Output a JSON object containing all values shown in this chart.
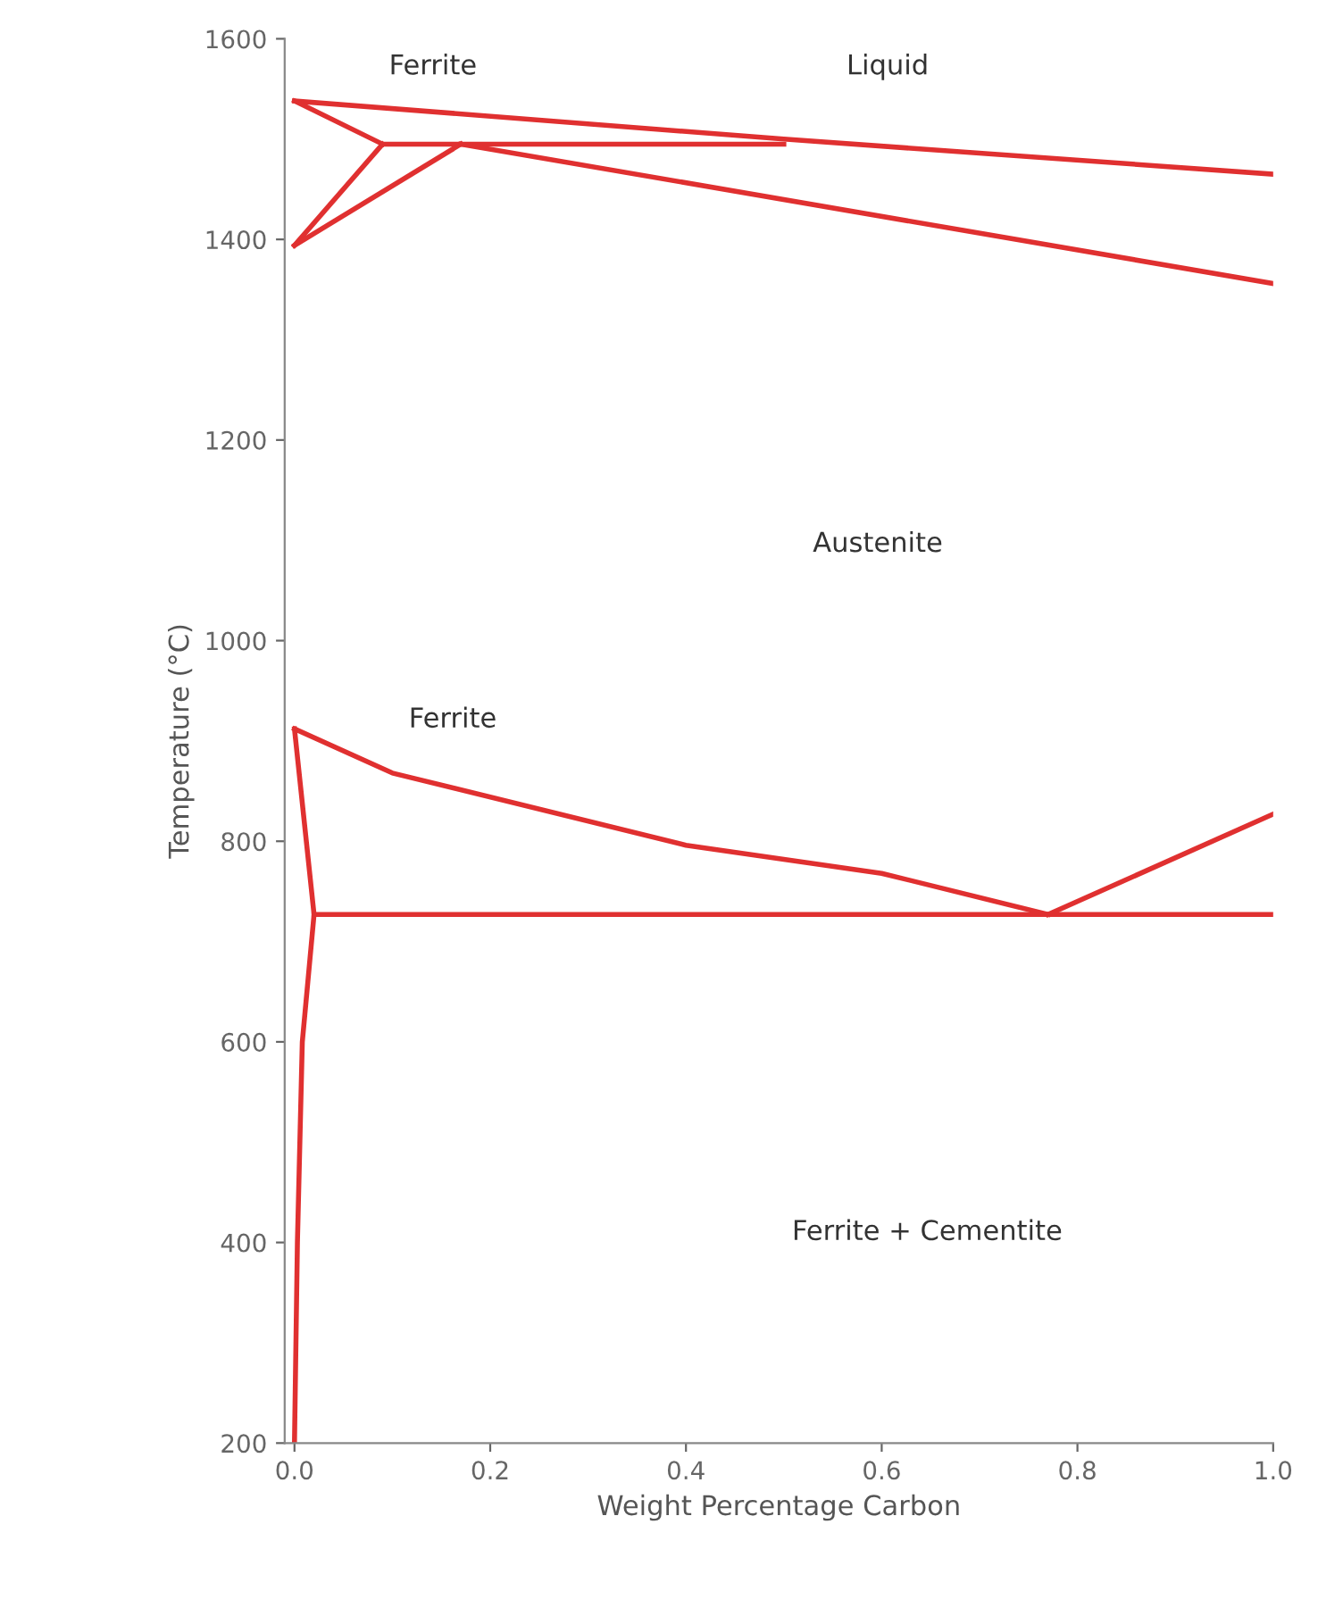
{
  "chart_data": {
    "type": "line",
    "xlabel": "Weight Percentage Carbon",
    "ylabel": "Temperature (°C)",
    "xlim": [
      -0.01,
      1.0
    ],
    "xticks": [
      {
        "value": 0,
        "label": "0.0"
      },
      0.2,
      0.4,
      0.6,
      0.8,
      {
        "value": 1,
        "label": "1.0"
      }
    ],
    "ylim": [
      200,
      1600
    ],
    "yticks": [
      200,
      400,
      600,
      800,
      1000,
      1200,
      1400,
      1600
    ],
    "grid": false,
    "marker": "none",
    "line_style": "solid",
    "series": [
      {
        "color": "#e03030",
        "x": [
          0,
          0.5,
          1.0
        ],
        "values": [
          1538,
          1500,
          1465
        ]
      },
      {
        "color": "#e03030",
        "x": [
          0,
          0.09
        ],
        "values": [
          1538,
          1495
        ]
      },
      {
        "color": "#e03030",
        "x": [
          0,
          0.09
        ],
        "values": [
          1394,
          1495
        ]
      },
      {
        "color": "#e03030",
        "x": [
          0,
          0.17
        ],
        "values": [
          1394,
          1495
        ]
      },
      {
        "color": "#e03030",
        "x": [
          0.09,
          0.5
        ],
        "values": [
          1495,
          1495
        ]
      },
      {
        "color": "#e03030",
        "x": [
          0.17,
          1.0
        ],
        "values": [
          1495,
          1356
        ]
      },
      {
        "color": "#e03030",
        "x": [
          0,
          0.1,
          0.4,
          0.6,
          0.77
        ],
        "values": [
          912,
          868,
          796,
          768,
          727
        ]
      },
      {
        "color": "#e03030",
        "x": [
          0.77,
          1.0
        ],
        "values": [
          727,
          827
        ]
      },
      {
        "color": "#e03030",
        "x": [
          0.02,
          1.0
        ],
        "values": [
          727,
          727
        ]
      },
      {
        "color": "#e03030",
        "x": [
          0,
          0.02,
          0.008,
          0.003,
          0
        ],
        "values": [
          912,
          727,
          600,
          400,
          200
        ]
      }
    ],
    "annotations": [
      "Ferrite",
      "Liquid",
      "Austenite",
      "Ferrite",
      "Ferrite + Cementite"
    ]
  }
}
